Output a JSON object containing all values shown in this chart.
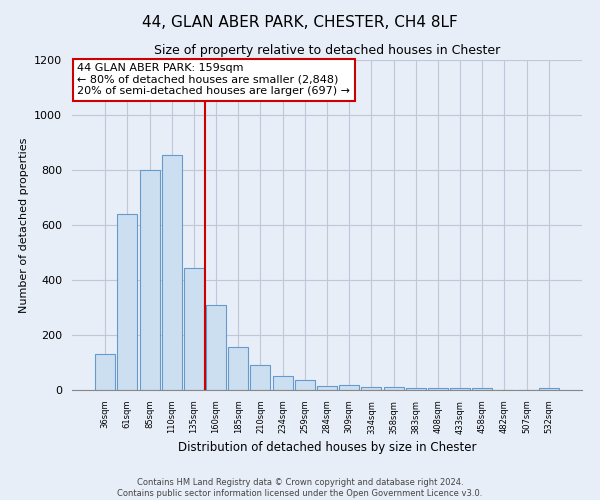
{
  "title": "44, GLAN ABER PARK, CHESTER, CH4 8LF",
  "subtitle": "Size of property relative to detached houses in Chester",
  "xlabel": "Distribution of detached houses by size in Chester",
  "ylabel": "Number of detached properties",
  "bar_labels": [
    "36sqm",
    "61sqm",
    "85sqm",
    "110sqm",
    "135sqm",
    "160sqm",
    "185sqm",
    "210sqm",
    "234sqm",
    "259sqm",
    "284sqm",
    "309sqm",
    "334sqm",
    "358sqm",
    "383sqm",
    "408sqm",
    "433sqm",
    "458sqm",
    "482sqm",
    "507sqm",
    "532sqm"
  ],
  "bar_values": [
    130,
    640,
    800,
    855,
    445,
    310,
    155,
    90,
    50,
    38,
    15,
    18,
    10,
    10,
    8,
    8,
    7,
    7,
    0,
    0,
    8
  ],
  "bar_color": "#ccdff0",
  "bar_edge_color": "#6699cc",
  "property_line_x": 4.5,
  "property_line_color": "#cc0000",
  "annotation_text": "44 GLAN ABER PARK: 159sqm\n← 80% of detached houses are smaller (2,848)\n20% of semi-detached houses are larger (697) →",
  "annotation_box_color": "#ffffff",
  "annotation_box_edge_color": "#cc0000",
  "ylim": [
    0,
    1200
  ],
  "yticks": [
    0,
    200,
    400,
    600,
    800,
    1000,
    1200
  ],
  "footer_line1": "Contains HM Land Registry data © Crown copyright and database right 2024.",
  "footer_line2": "Contains public sector information licensed under the Open Government Licence v3.0.",
  "bg_color": "#e8eef8",
  "plot_bg_color": "#e8eef8",
  "grid_color": "#c0c8d8"
}
